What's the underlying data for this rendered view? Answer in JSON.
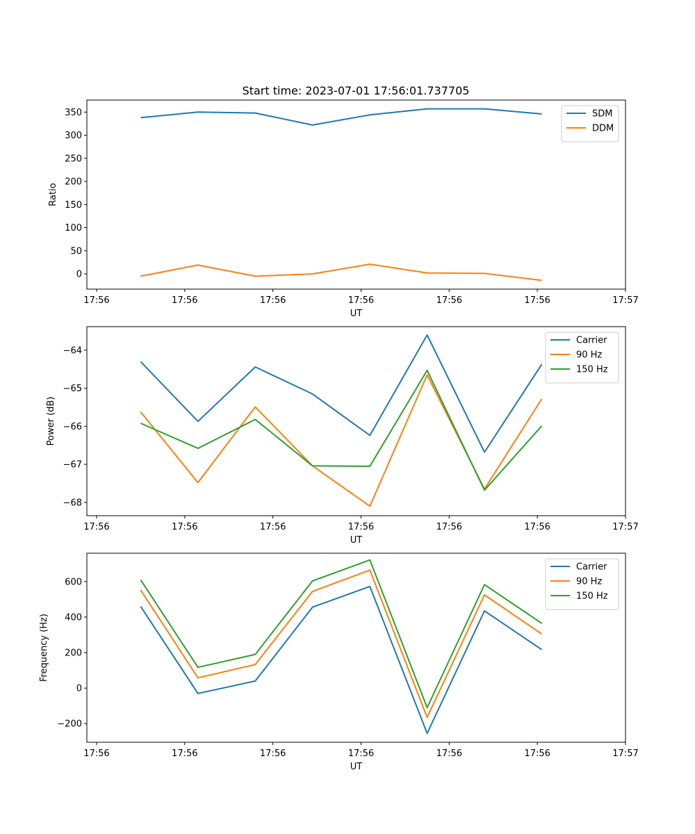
{
  "title": "Start time: 2023-07-01 17:56:01.737705",
  "colors": {
    "blue": "#1f77b4",
    "orange": "#ff7f0e",
    "green": "#2ca02c"
  },
  "chart_data": [
    {
      "type": "line",
      "xlabel": "UT",
      "ylabel": "Ratio",
      "x_ticks": [
        0,
        1,
        2,
        3,
        4,
        5,
        6
      ],
      "x_tick_labels": [
        "17:56",
        "17:56",
        "17:56",
        "17:56",
        "17:56",
        "17:56",
        "17:57"
      ],
      "xlim": [
        -0.11,
        6.0
      ],
      "ylim": [
        -33,
        376
      ],
      "y_ticks": [
        0,
        50,
        100,
        150,
        200,
        250,
        300,
        350
      ],
      "x": [
        0.5,
        1.15,
        1.8,
        2.45,
        3.1,
        3.75,
        4.4,
        5.05
      ],
      "legend_position": "upper right",
      "series": [
        {
          "name": "SDM",
          "color": "#1f77b4",
          "values": [
            338,
            350,
            348,
            322,
            344,
            357,
            357,
            346
          ]
        },
        {
          "name": "DDM",
          "color": "#ff7f0e",
          "values": [
            -5,
            19,
            -5,
            0,
            21,
            2,
            1,
            -14
          ]
        }
      ]
    },
    {
      "type": "line",
      "xlabel": "UT",
      "ylabel": "Power (dB)",
      "x_ticks": [
        0,
        1,
        2,
        3,
        4,
        5,
        6
      ],
      "x_tick_labels": [
        "17:56",
        "17:56",
        "17:56",
        "17:56",
        "17:56",
        "17:56",
        "17:57"
      ],
      "xlim": [
        -0.11,
        6.0
      ],
      "ylim": [
        -68.35,
        -63.38
      ],
      "y_ticks": [
        -68,
        -67,
        -66,
        -65,
        -64
      ],
      "y_tick_labels": [
        "−68",
        "−67",
        "−66",
        "−65",
        "−64"
      ],
      "x": [
        0.5,
        1.15,
        1.8,
        2.45,
        3.1,
        3.75,
        4.4,
        5.05
      ],
      "legend_position": "upper right",
      "series": [
        {
          "name": "Carrier",
          "color": "#1f77b4",
          "values": [
            -64.3,
            -65.87,
            -64.44,
            -65.15,
            -66.24,
            -63.6,
            -66.68,
            -64.37
          ]
        },
        {
          "name": "90 Hz",
          "color": "#ff7f0e",
          "values": [
            -65.62,
            -67.48,
            -65.49,
            -67.04,
            -68.1,
            -64.65,
            -67.65,
            -65.28
          ]
        },
        {
          "name": "150 Hz",
          "color": "#2ca02c",
          "values": [
            -65.92,
            -66.58,
            -65.82,
            -67.04,
            -67.05,
            -64.53,
            -67.68,
            -65.99
          ]
        }
      ]
    },
    {
      "type": "line",
      "xlabel": "UT",
      "ylabel": "Frequency (Hz)",
      "x_ticks": [
        0,
        1,
        2,
        3,
        4,
        5,
        6
      ],
      "x_tick_labels": [
        "17:56",
        "17:56",
        "17:56",
        "17:56",
        "17:56",
        "17:56",
        "17:57"
      ],
      "xlim": [
        -0.11,
        6.0
      ],
      "ylim": [
        -305,
        760
      ],
      "y_ticks": [
        -200,
        0,
        200,
        400,
        600
      ],
      "y_tick_labels": [
        "−200",
        "0",
        "200",
        "400",
        "600"
      ],
      "x": [
        0.5,
        1.15,
        1.8,
        2.45,
        3.1,
        3.75,
        4.4,
        5.05
      ],
      "legend_position": "upper right",
      "series": [
        {
          "name": "Carrier",
          "color": "#1f77b4",
          "values": [
            460,
            -30,
            40,
            456,
            573,
            -255,
            435,
            217
          ]
        },
        {
          "name": "90 Hz",
          "color": "#ff7f0e",
          "values": [
            553,
            58,
            133,
            545,
            665,
            -165,
            525,
            305
          ]
        },
        {
          "name": "150 Hz",
          "color": "#2ca02c",
          "values": [
            610,
            117,
            190,
            604,
            722,
            -110,
            583,
            365
          ]
        }
      ]
    }
  ]
}
